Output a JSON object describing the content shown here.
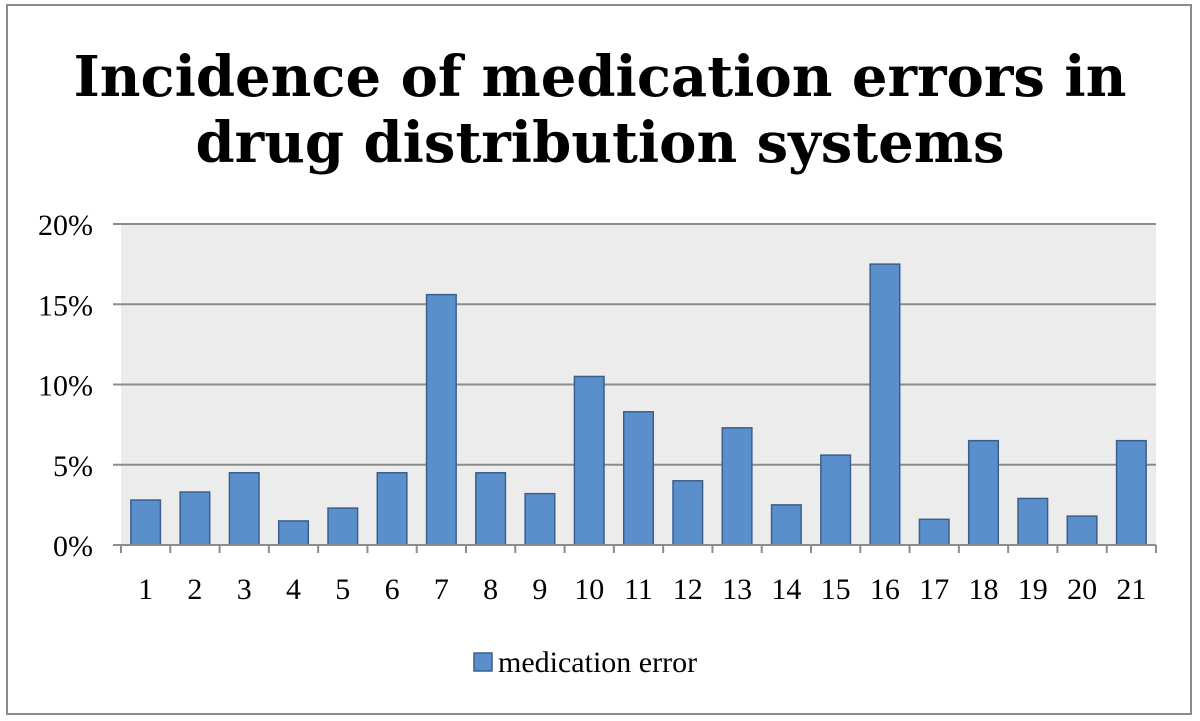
{
  "chart_data": {
    "type": "bar",
    "title": "Incidence of medication errors in drug distribution systems",
    "xlabel": "",
    "ylabel": "",
    "categories": [
      "1",
      "2",
      "3",
      "4",
      "5",
      "6",
      "7",
      "8",
      "9",
      "10",
      "11",
      "12",
      "13",
      "14",
      "15",
      "16",
      "17",
      "18",
      "19",
      "20",
      "21"
    ],
    "series": [
      {
        "name": "medication error",
        "values": [
          2.8,
          3.3,
          4.5,
          1.5,
          2.3,
          4.5,
          15.6,
          4.5,
          3.2,
          10.5,
          8.3,
          4.0,
          7.3,
          2.5,
          5.6,
          17.5,
          1.6,
          6.5,
          2.9,
          1.8,
          6.5
        ]
      }
    ],
    "ylim": [
      0,
      20
    ],
    "yticks": [
      0,
      5,
      10,
      15,
      20
    ],
    "ytick_labels": [
      "0%",
      "5%",
      "10%",
      "15%",
      "20%"
    ],
    "grid": true,
    "legend_position": "bottom",
    "colors": {
      "bar_fill": "#5b8fcc",
      "bar_stroke": "#3a5f8c",
      "plot_background": "#ececec",
      "gridline": "#8c8c8c"
    }
  }
}
